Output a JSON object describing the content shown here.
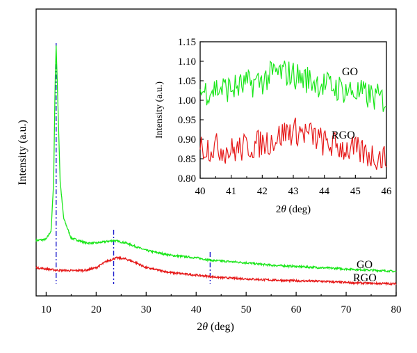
{
  "colors": {
    "go": "#19e619",
    "rgo": "#e61919",
    "marker": "#1a1acc",
    "axis": "#000000"
  },
  "chart_data": [
    {
      "type": "line",
      "xlabel_prefix": "2",
      "xlabel_theta": "θ",
      "xlabel_suffix": " (deg)",
      "ylabel": "Intensity (a.u.)",
      "xlim": [
        8,
        80
      ],
      "ylim": [
        0,
        1
      ],
      "xticks": [
        "10",
        "20",
        "30",
        "40",
        "50",
        "60",
        "70",
        "80"
      ],
      "y_tick_labels_shown": false,
      "marker_lines": [
        12,
        23.5,
        42.8
      ],
      "series": [
        {
          "name": "GO",
          "x": [
            8,
            10,
            11,
            11.5,
            11.8,
            12,
            12.3,
            12.8,
            13.5,
            15,
            18,
            20,
            23.5,
            26,
            30,
            35,
            40,
            43,
            50,
            55,
            60,
            65,
            70,
            75,
            80
          ],
          "y": [
            0.21,
            0.215,
            0.25,
            0.45,
            0.85,
            1.0,
            0.8,
            0.45,
            0.3,
            0.22,
            0.2,
            0.2,
            0.21,
            0.2,
            0.17,
            0.15,
            0.14,
            0.13,
            0.12,
            0.11,
            0.105,
            0.1,
            0.095,
            0.09,
            0.085
          ]
        },
        {
          "name": "RGO",
          "x": [
            8,
            10,
            12,
            15,
            18,
            20,
            22,
            24,
            26,
            28,
            30,
            35,
            40,
            45,
            50,
            55,
            60,
            65,
            70,
            75,
            80
          ],
          "y": [
            0.1,
            0.095,
            0.09,
            0.088,
            0.09,
            0.1,
            0.125,
            0.14,
            0.135,
            0.12,
            0.1,
            0.08,
            0.07,
            0.06,
            0.055,
            0.05,
            0.047,
            0.045,
            0.04,
            0.037,
            0.035
          ]
        }
      ]
    },
    {
      "type": "line",
      "xlabel_prefix": "2",
      "xlabel_theta": "θ",
      "xlabel_suffix": " (deg)",
      "ylabel": "Intensity (a.u.)",
      "xlim": [
        40,
        46
      ],
      "ylim": [
        0.8,
        1.15
      ],
      "xticks": [
        "40",
        "41",
        "42",
        "43",
        "44",
        "45",
        "46"
      ],
      "yticks": [
        "0.80",
        "0.85",
        "0.90",
        "0.95",
        "1.00",
        "1.05",
        "1.10",
        "1.15"
      ],
      "series": [
        {
          "name": "GO",
          "x": [
            40,
            40.5,
            41,
            41.5,
            42,
            42.4,
            42.8,
            43.2,
            43.6,
            44,
            44.5,
            45,
            45.5,
            46
          ],
          "y": [
            1.02,
            1.03,
            1.03,
            1.04,
            1.05,
            1.07,
            1.07,
            1.06,
            1.05,
            1.04,
            1.03,
            1.02,
            1.01,
            1.0
          ]
        },
        {
          "name": "RGO",
          "x": [
            40,
            40.5,
            41,
            41.5,
            42,
            42.4,
            42.8,
            43.2,
            43.6,
            44,
            44.5,
            45,
            45.5,
            46
          ],
          "y": [
            0.88,
            0.88,
            0.87,
            0.88,
            0.89,
            0.9,
            0.92,
            0.92,
            0.91,
            0.89,
            0.88,
            0.87,
            0.86,
            0.85
          ]
        }
      ]
    }
  ]
}
